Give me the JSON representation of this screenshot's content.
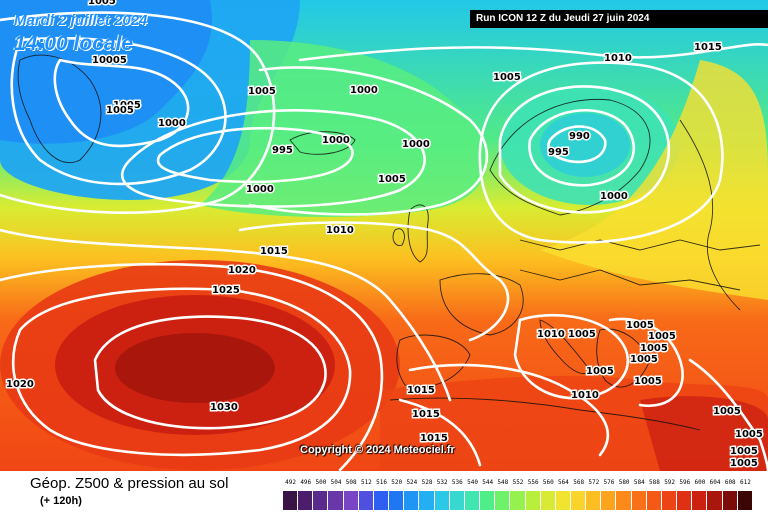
{
  "header": {
    "date": "Mardi 2 juillet 2024",
    "time": "14:00 locale",
    "run": "Run ICON 12 Z du Jeudi 27 juin 2024"
  },
  "copyright": "Copyright © 2024 Meteociel.fr",
  "footer": {
    "field": "Géop. Z500 & pression au sol",
    "lead": "(+ 120h)"
  },
  "legend": {
    "values": [
      "492",
      "496",
      "500",
      "504",
      "508",
      "512",
      "516",
      "520",
      "524",
      "528",
      "532",
      "536",
      "540",
      "544",
      "548",
      "552",
      "556",
      "560",
      "564",
      "568",
      "572",
      "576",
      "580",
      "584",
      "588",
      "592",
      "596",
      "600",
      "604",
      "608",
      "612"
    ],
    "colors": [
      "#3a1446",
      "#4b1d6a",
      "#5a2a8c",
      "#6a37a8",
      "#7a45c4",
      "#5050e0",
      "#2f5ff0",
      "#1f78f2",
      "#1f95f4",
      "#22b0f2",
      "#2cc8e8",
      "#36d8d0",
      "#3fe6b0",
      "#50ee88",
      "#6ef26a",
      "#95f14e",
      "#b8ee3c",
      "#d8ea34",
      "#f0e430",
      "#fad42a",
      "#fcbe22",
      "#fda41e",
      "#fc8a1a",
      "#f87018",
      "#f45a16",
      "#ec4414",
      "#e03014",
      "#cc2010",
      "#a8160c",
      "#7c0c0a",
      "#3c0606"
    ]
  },
  "isobar_labels": [
    {
      "value": "1005"
    },
    {
      "value": "10005"
    },
    {
      "value": "1005"
    },
    {
      "value": "1005"
    },
    {
      "value": "1000"
    },
    {
      "value": "1005"
    },
    {
      "value": "1000"
    },
    {
      "value": "1000"
    },
    {
      "value": "995"
    },
    {
      "value": "1000"
    },
    {
      "value": "1000"
    },
    {
      "value": "1005"
    },
    {
      "value": "1005"
    },
    {
      "value": "1010"
    },
    {
      "value": "1015"
    },
    {
      "value": "990"
    },
    {
      "value": "995"
    },
    {
      "value": "1000"
    },
    {
      "value": "1010"
    },
    {
      "value": "1015"
    },
    {
      "value": "1020"
    },
    {
      "value": "1025"
    },
    {
      "value": "1020"
    },
    {
      "value": "1030"
    },
    {
      "value": "1010"
    },
    {
      "value": "1005"
    },
    {
      "value": "1005"
    },
    {
      "value": "1005"
    },
    {
      "value": "1005"
    },
    {
      "value": "1005"
    },
    {
      "value": "1005"
    },
    {
      "value": "1015"
    },
    {
      "value": "1015"
    },
    {
      "value": "1015"
    },
    {
      "value": "1010"
    },
    {
      "value": "1005"
    },
    {
      "value": "1005"
    },
    {
      "value": "1005"
    },
    {
      "value": "1005"
    },
    {
      "value": "1005"
    }
  ]
}
